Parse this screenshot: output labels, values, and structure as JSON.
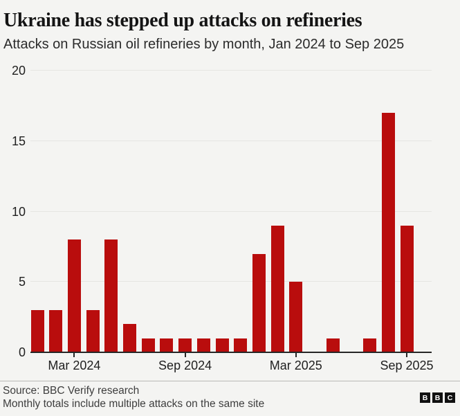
{
  "header": {
    "title": "Ukraine has stepped up attacks on refineries",
    "subtitle": "Attacks on Russian oil refineries by month, Jan 2024 to Sep 2025"
  },
  "chart_data": {
    "type": "bar",
    "title": "Ukraine has stepped up attacks on refineries",
    "subtitle": "Attacks on Russian oil refineries by month, Jan 2024 to Sep 2025",
    "categories": [
      "Jan 2024",
      "Feb 2024",
      "Mar 2024",
      "Apr 2024",
      "May 2024",
      "Jun 2024",
      "Jul 2024",
      "Aug 2024",
      "Sep 2024",
      "Oct 2024",
      "Nov 2024",
      "Dec 2024",
      "Jan 2025",
      "Feb 2025",
      "Mar 2025",
      "Apr 2025",
      "May 2025",
      "Jun 2025",
      "Jul 2025",
      "Aug 2025",
      "Sep 2025"
    ],
    "values": [
      3,
      3,
      8,
      3,
      8,
      2,
      1,
      1,
      1,
      1,
      1,
      1,
      7,
      9,
      5,
      0,
      1,
      0,
      1,
      17,
      9
    ],
    "xlabel": "",
    "ylabel": "",
    "ylim": [
      0,
      20
    ],
    "y_ticks": [
      0,
      5,
      10,
      15,
      20
    ],
    "x_tick_labels": [
      "Mar 2024",
      "Sep 2024",
      "Mar 2025",
      "Sep 2025"
    ],
    "x_tick_indices": [
      2,
      8,
      14,
      20
    ],
    "grid": true,
    "legend": false,
    "bar_color": "#b90d0d"
  },
  "footer": {
    "source": "Source: BBC Verify research",
    "note": "Monthly totals include multiple attacks on the same site",
    "logo_letters": [
      "B",
      "B",
      "C"
    ]
  },
  "colors": {
    "background": "#f4f4f2",
    "bar": "#b90d0d",
    "gridline": "#e5e5e2",
    "axis": "#262626",
    "text": "#141414"
  }
}
